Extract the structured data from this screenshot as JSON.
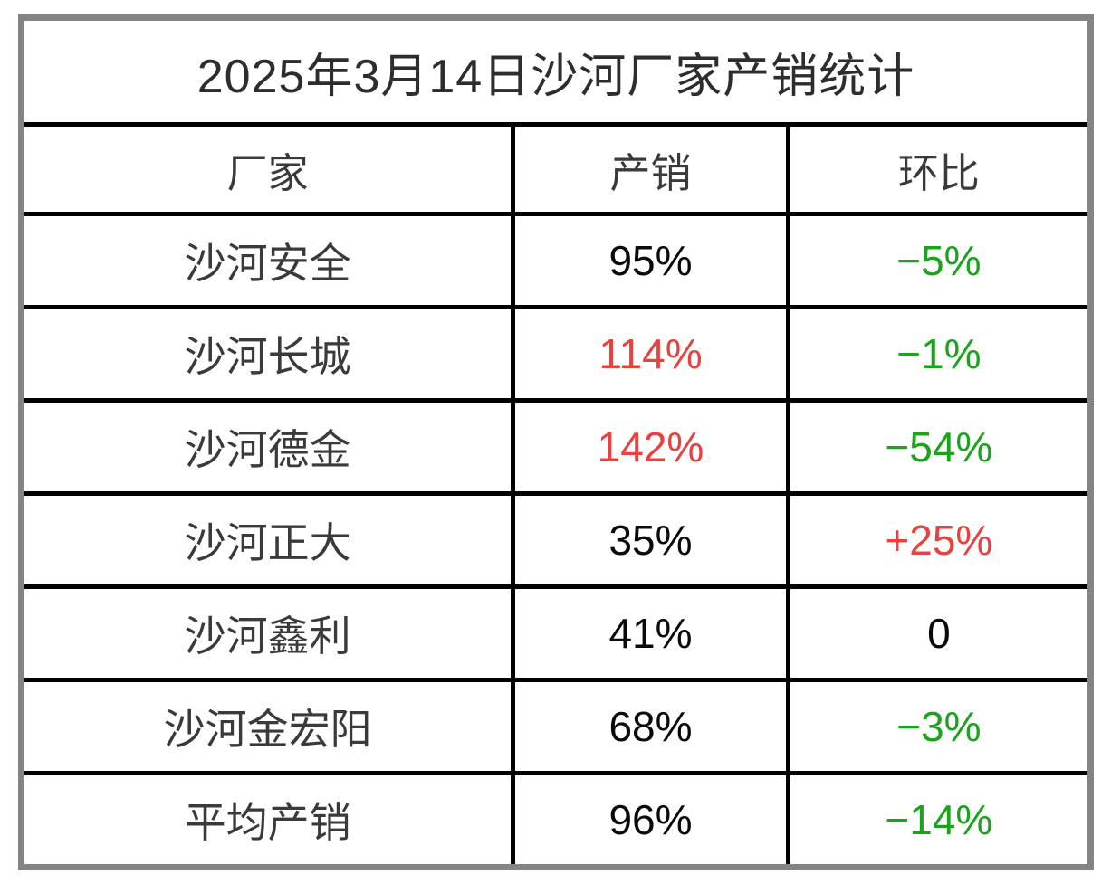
{
  "title": "2025年3月14日沙河厂家产销统计",
  "table": {
    "columns": [
      {
        "label": "厂家"
      },
      {
        "label": "产销"
      },
      {
        "label": "环比"
      }
    ],
    "rows": [
      {
        "name": "沙河安全",
        "chanxiao": {
          "text": "95%",
          "color": "black"
        },
        "huanbi": {
          "text": "−5%",
          "color": "green"
        }
      },
      {
        "name": "沙河长城",
        "chanxiao": {
          "text": "114%",
          "color": "red"
        },
        "huanbi": {
          "text": "−1%",
          "color": "green"
        }
      },
      {
        "name": "沙河德金",
        "chanxiao": {
          "text": "142%",
          "color": "red"
        },
        "huanbi": {
          "text": "−54%",
          "color": "green"
        }
      },
      {
        "name": "沙河正大",
        "chanxiao": {
          "text": "35%",
          "color": "black"
        },
        "huanbi": {
          "text": "+25%",
          "color": "red"
        }
      },
      {
        "name": "沙河鑫利",
        "chanxiao": {
          "text": "41%",
          "color": "black"
        },
        "huanbi": {
          "text": "0",
          "color": "black"
        }
      },
      {
        "name": "沙河金宏阳",
        "chanxiao": {
          "text": "68%",
          "color": "black"
        },
        "huanbi": {
          "text": "−3%",
          "color": "green"
        }
      },
      {
        "name": "平均产销",
        "chanxiao": {
          "text": "96%",
          "color": "black"
        },
        "huanbi": {
          "text": "−14%",
          "color": "green"
        }
      }
    ]
  },
  "colors": {
    "black": "#0a0a0a",
    "red": "#e8413e",
    "green": "#1ba41b",
    "name_text": "#3a3a3a",
    "outer_border": "#848484",
    "inner_border": "#000000"
  },
  "chart_data": {
    "type": "table",
    "title": "2025年3月14日沙河厂家产销统计",
    "columns": [
      "厂家",
      "产销",
      "环比"
    ],
    "rows": [
      [
        "沙河安全",
        "95%",
        "−5%"
      ],
      [
        "沙河长城",
        "114%",
        "−1%"
      ],
      [
        "沙河德金",
        "142%",
        "−54%"
      ],
      [
        "沙河正大",
        "35%",
        "+25%"
      ],
      [
        "沙河鑫利",
        "41%",
        "0"
      ],
      [
        "沙河金宏阳",
        "68%",
        "−3%"
      ],
      [
        "平均产销",
        "96%",
        "−14%"
      ]
    ]
  }
}
